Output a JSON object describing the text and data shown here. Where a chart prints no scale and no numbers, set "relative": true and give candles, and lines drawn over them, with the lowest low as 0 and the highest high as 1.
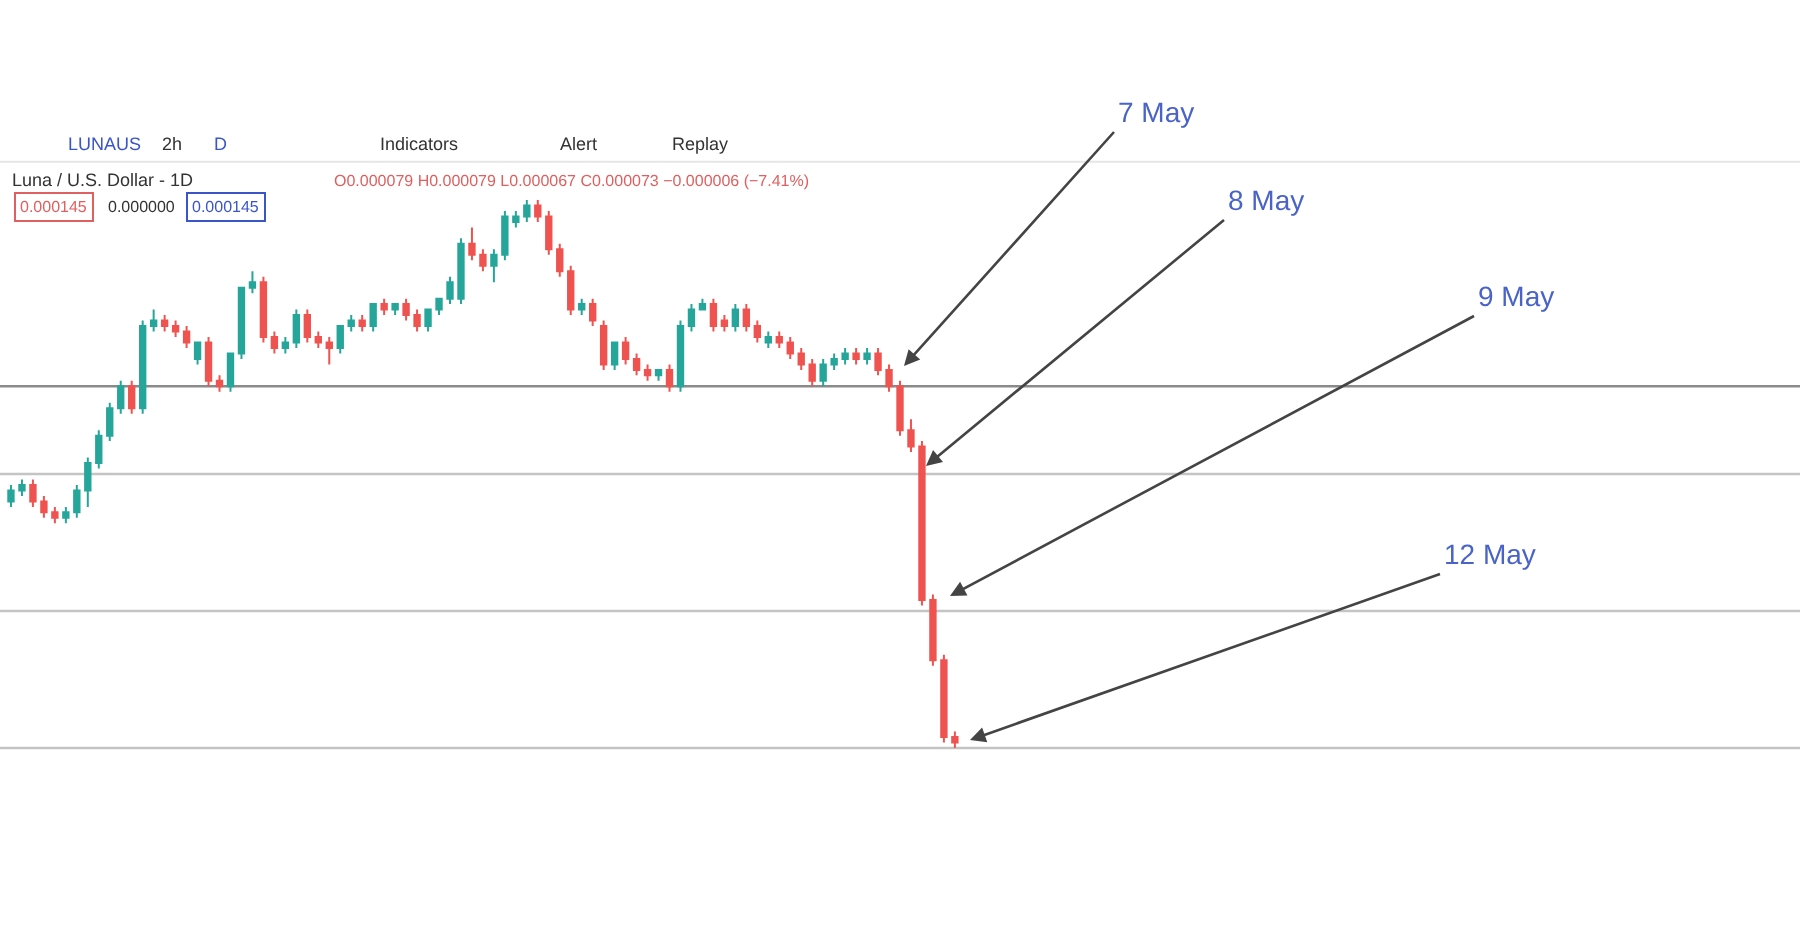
{
  "chart_data": {
    "type": "candlestick",
    "relative": true,
    "title": "Luna / U.S. Dollar - 1D",
    "categories": [
      null,
      null,
      null,
      null,
      null,
      null,
      null,
      null,
      null,
      null,
      null,
      null,
      null,
      null,
      null,
      null,
      null,
      null,
      null,
      null,
      null,
      null,
      null,
      null,
      null,
      null,
      null,
      null,
      null,
      null,
      null,
      null,
      null,
      null,
      null,
      null,
      null,
      null,
      null,
      null,
      null,
      null,
      null,
      null,
      null,
      null,
      null,
      null,
      null,
      null,
      null,
      null,
      null,
      null,
      null,
      null,
      null,
      null,
      null,
      null,
      null,
      null,
      null,
      null,
      null,
      null,
      null,
      null,
      null,
      null,
      null,
      null,
      null,
      null,
      null,
      null,
      null,
      null,
      null,
      null,
      null,
      null,
      null,
      null,
      null,
      null,
      null
    ],
    "ohlc": [
      [
        0.45,
        0.48,
        0.44,
        0.47
      ],
      [
        0.47,
        0.49,
        0.46,
        0.48
      ],
      [
        0.48,
        0.49,
        0.44,
        0.45
      ],
      [
        0.45,
        0.46,
        0.42,
        0.43
      ],
      [
        0.43,
        0.44,
        0.41,
        0.42
      ],
      [
        0.42,
        0.44,
        0.41,
        0.43
      ],
      [
        0.43,
        0.48,
        0.42,
        0.47
      ],
      [
        0.47,
        0.53,
        0.44,
        0.52
      ],
      [
        0.52,
        0.58,
        0.51,
        0.57
      ],
      [
        0.57,
        0.63,
        0.56,
        0.62
      ],
      [
        0.62,
        0.67,
        0.61,
        0.66
      ],
      [
        0.66,
        0.67,
        0.61,
        0.62
      ],
      [
        0.62,
        0.78,
        0.61,
        0.77
      ],
      [
        0.77,
        0.8,
        0.76,
        0.78
      ],
      [
        0.78,
        0.79,
        0.76,
        0.77
      ],
      [
        0.77,
        0.78,
        0.75,
        0.76
      ],
      [
        0.76,
        0.77,
        0.73,
        0.74
      ],
      [
        0.71,
        0.74,
        0.7,
        0.74
      ],
      [
        0.74,
        0.75,
        0.66,
        0.67
      ],
      [
        0.67,
        0.68,
        0.65,
        0.66
      ],
      [
        0.66,
        0.72,
        0.65,
        0.72
      ],
      [
        0.72,
        0.84,
        0.71,
        0.84
      ],
      [
        0.84,
        0.87,
        0.83,
        0.85
      ],
      [
        0.85,
        0.86,
        0.74,
        0.75
      ],
      [
        0.75,
        0.76,
        0.72,
        0.73
      ],
      [
        0.73,
        0.75,
        0.72,
        0.74
      ],
      [
        0.74,
        0.8,
        0.73,
        0.79
      ],
      [
        0.79,
        0.8,
        0.74,
        0.75
      ],
      [
        0.75,
        0.76,
        0.73,
        0.74
      ],
      [
        0.74,
        0.75,
        0.7,
        0.73
      ],
      [
        0.73,
        0.77,
        0.72,
        0.77
      ],
      [
        0.77,
        0.79,
        0.76,
        0.78
      ],
      [
        0.78,
        0.79,
        0.76,
        0.77
      ],
      [
        0.77,
        0.81,
        0.76,
        0.81
      ],
      [
        0.81,
        0.82,
        0.79,
        0.8
      ],
      [
        0.8,
        0.81,
        0.79,
        0.81
      ],
      [
        0.81,
        0.82,
        0.78,
        0.79
      ],
      [
        0.79,
        0.8,
        0.76,
        0.77
      ],
      [
        0.77,
        0.8,
        0.76,
        0.8
      ],
      [
        0.8,
        0.82,
        0.79,
        0.82
      ],
      [
        0.82,
        0.86,
        0.81,
        0.85
      ],
      [
        0.82,
        0.93,
        0.81,
        0.92
      ],
      [
        0.92,
        0.95,
        0.89,
        0.9
      ],
      [
        0.9,
        0.91,
        0.87,
        0.88
      ],
      [
        0.88,
        0.91,
        0.85,
        0.9
      ],
      [
        0.9,
        0.98,
        0.89,
        0.97
      ],
      [
        0.96,
        0.98,
        0.95,
        0.97
      ],
      [
        0.97,
        1.0,
        0.96,
        0.99
      ],
      [
        0.99,
        1.0,
        0.96,
        0.97
      ],
      [
        0.97,
        0.98,
        0.9,
        0.91
      ],
      [
        0.91,
        0.92,
        0.86,
        0.87
      ],
      [
        0.87,
        0.88,
        0.79,
        0.8
      ],
      [
        0.8,
        0.82,
        0.79,
        0.81
      ],
      [
        0.81,
        0.82,
        0.77,
        0.78
      ],
      [
        0.77,
        0.78,
        0.69,
        0.7
      ],
      [
        0.7,
        0.74,
        0.69,
        0.74
      ],
      [
        0.74,
        0.75,
        0.7,
        0.71
      ],
      [
        0.71,
        0.72,
        0.68,
        0.69
      ],
      [
        0.69,
        0.7,
        0.67,
        0.68
      ],
      [
        0.68,
        0.69,
        0.67,
        0.69
      ],
      [
        0.69,
        0.7,
        0.65,
        0.66
      ],
      [
        0.66,
        0.78,
        0.65,
        0.77
      ],
      [
        0.77,
        0.81,
        0.76,
        0.8
      ],
      [
        0.8,
        0.82,
        0.8,
        0.81
      ],
      [
        0.81,
        0.82,
        0.76,
        0.77
      ],
      [
        0.78,
        0.79,
        0.76,
        0.77
      ],
      [
        0.77,
        0.81,
        0.76,
        0.8
      ],
      [
        0.8,
        0.81,
        0.76,
        0.77
      ],
      [
        0.77,
        0.78,
        0.74,
        0.75
      ],
      [
        0.74,
        0.76,
        0.73,
        0.75
      ],
      [
        0.75,
        0.76,
        0.73,
        0.74
      ],
      [
        0.74,
        0.75,
        0.71,
        0.72
      ],
      [
        0.72,
        0.73,
        0.69,
        0.7
      ],
      [
        0.7,
        0.71,
        0.66,
        0.67
      ],
      [
        0.67,
        0.71,
        0.66,
        0.7
      ],
      [
        0.7,
        0.72,
        0.69,
        0.71
      ],
      [
        0.71,
        0.73,
        0.7,
        0.72
      ],
      [
        0.72,
        0.73,
        0.7,
        0.71
      ],
      [
        0.71,
        0.73,
        0.7,
        0.72
      ],
      [
        0.72,
        0.73,
        0.68,
        0.69
      ],
      [
        0.69,
        0.7,
        0.65,
        0.66
      ],
      [
        0.66,
        0.67,
        0.57,
        0.58
      ],
      [
        0.58,
        0.6,
        0.54,
        0.55
      ],
      [
        0.55,
        0.56,
        0.26,
        0.27
      ],
      [
        0.27,
        0.28,
        0.15,
        0.16
      ],
      [
        0.16,
        0.17,
        0.01,
        0.02
      ],
      [
        0.02,
        0.03,
        0.0,
        0.01
      ]
    ],
    "ref_lines": [
      {
        "axis": "y",
        "value": 0.66,
        "color": "#8a8a8a"
      },
      {
        "axis": "y",
        "value": 0.5,
        "color": "#c4c4c4"
      },
      {
        "axis": "y",
        "value": 0.25,
        "color": "#c4c4c4"
      },
      {
        "axis": "y",
        "value": 0.0,
        "color": "#c4c4c4"
      }
    ],
    "annotations": [
      "7 May",
      "8 May",
      "9 May",
      "12 May",
      "LUNAUS",
      "2h",
      "D",
      "Indicators",
      "Alert",
      "Replay",
      "O0.000079 H0.000079 L0.000067 C0.000073 −0.000006 (−7.41%)",
      "0.000145",
      "0.000000",
      "0.000145"
    ]
  }
}
